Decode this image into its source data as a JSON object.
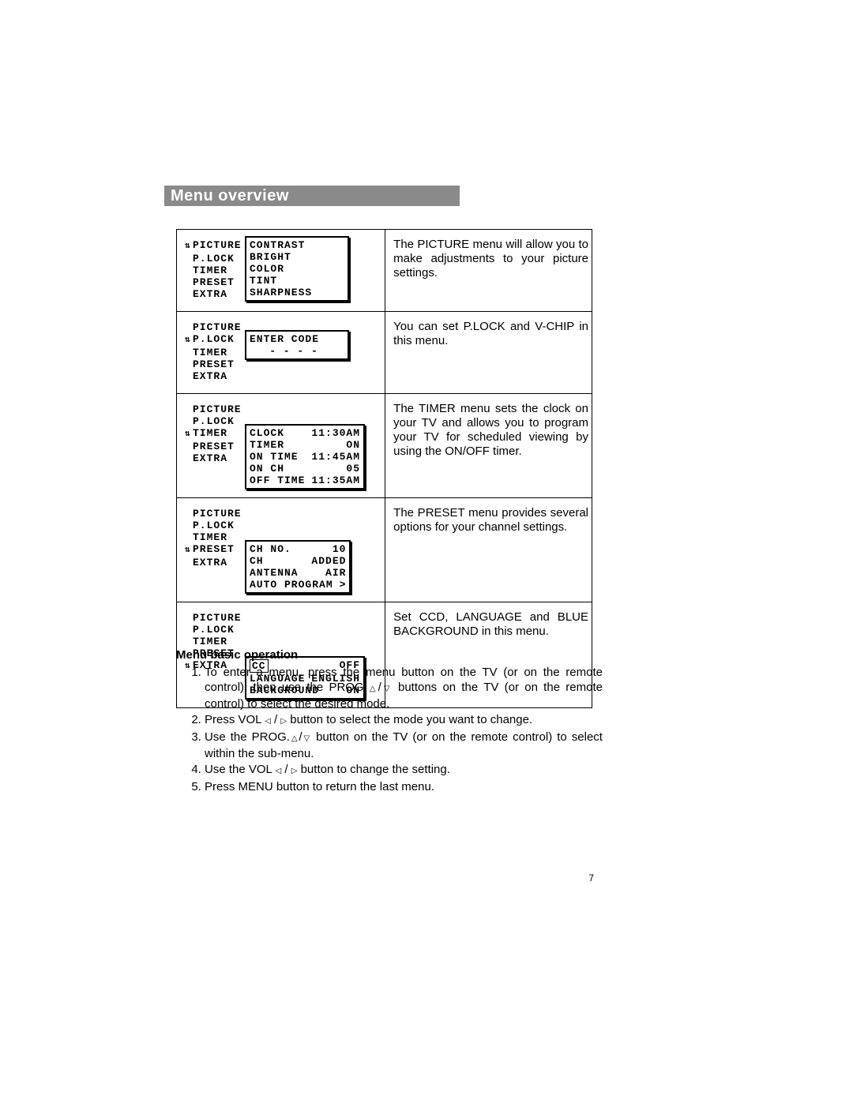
{
  "heading": "Menu overview",
  "page_number": "7",
  "nav_labels": [
    "PICTURE",
    "P.LOCK",
    "TIMER",
    "PRESET",
    "EXTRA"
  ],
  "rows": [
    {
      "selected_index": 0,
      "submenu": [
        {
          "label": "CONTRAST"
        },
        {
          "label": "BRIGHT"
        },
        {
          "label": "COLOR"
        },
        {
          "label": "TINT"
        },
        {
          "label": "SHARPNESS"
        }
      ],
      "desc": "The PICTURE menu will allow you to make adjustments to your picture settings."
    },
    {
      "selected_index": 1,
      "submenu": [
        {
          "label": "ENTER CODE"
        },
        {
          "label": "- - - -",
          "center": true
        }
      ],
      "desc": "You can set P.LOCK and V-CHIP in this menu."
    },
    {
      "selected_index": 2,
      "submenu": [
        {
          "label": "CLOCK",
          "value": "11:30AM"
        },
        {
          "label": "TIMER",
          "value": "ON"
        },
        {
          "label": "ON TIME",
          "value": "11:45AM"
        },
        {
          "label": "ON CH",
          "value": "05"
        },
        {
          "label": "OFF TIME",
          "value": "11:35AM"
        }
      ],
      "desc": "The TIMER menu sets the clock on your TV and allows you to program your TV for scheduled viewing by using the ON/OFF timer."
    },
    {
      "selected_index": 3,
      "submenu": [
        {
          "label": "CH NO.",
          "value": "10"
        },
        {
          "label": "CH",
          "value": "ADDED"
        },
        {
          "label": "ANTENNA",
          "value": "AIR"
        },
        {
          "label": "AUTO PROGRAM",
          "value": ">"
        }
      ],
      "desc": "The PRESET menu provides several options for your channel settings."
    },
    {
      "selected_index": 4,
      "submenu": [
        {
          "label": "CC",
          "value": "OFF",
          "boxed": true
        },
        {
          "label": "LANGUAGE",
          "value": "ENGLISH"
        },
        {
          "label": "BACKGROUND",
          "value": "ON"
        }
      ],
      "desc": "Set CCD, LANGUAGE and BLUE BACKGROUND in this menu."
    }
  ],
  "ops": {
    "title": "Menu basic operation",
    "items": [
      "To enter a menu, press the menu button on the TV (or on the remote control), then use the PROG.{UP}/{DN} buttons on the TV (or on the remote control) to select the desired mode.",
      "Press VOL {L} / {R} button to select the mode you want to change.",
      "Use the PROG.{UP}/{DN} button on the TV (or on the remote control) to select within the sub-menu.",
      "Use the VOL {L} / {R} button to change the setting.",
      "Press  MENU button to return the last menu."
    ]
  }
}
